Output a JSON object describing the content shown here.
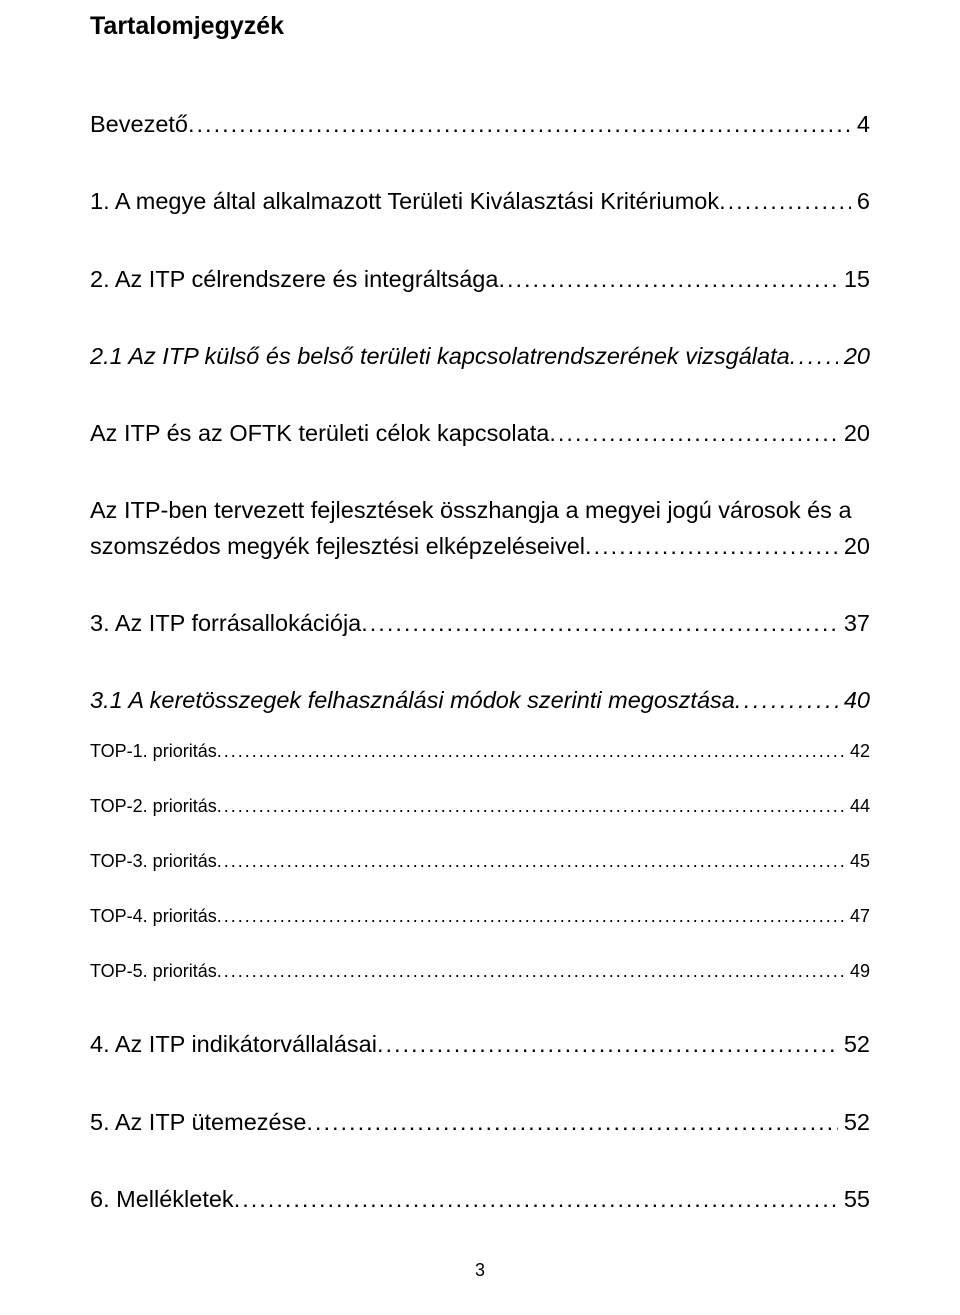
{
  "title": "Tartalomjegyzék",
  "entries": [
    {
      "label": "Bevezető",
      "page": "4"
    },
    {
      "label": "1.   A megye által alkalmazott Területi Kiválasztási Kritériumok",
      "page": "6"
    },
    {
      "label": "2.   Az ITP célrendszere és integráltsága",
      "page": "15"
    },
    {
      "label": "2.1   Az ITP külső és belső területi kapcsolatrendszerének vizsgálata",
      "page": "20"
    },
    {
      "label": "Az ITP és az OFTK területi célok kapcsolata",
      "page": "20"
    },
    {
      "label_line1": "Az ITP-ben tervezett fejlesztések összhangja a megyei jogú városok és a",
      "label_line2": "szomszédos megyék fejlesztési elképzeléseivel",
      "page": "20"
    },
    {
      "label": "3.   Az ITP forrásallokációja",
      "page": "37"
    },
    {
      "label": "3.1   A keretösszegek felhasználási módok szerinti megosztása",
      "page": "40"
    },
    {
      "label": "TOP-1. prioritás",
      "page": "42"
    },
    {
      "label": "TOP-2. prioritás",
      "page": "44"
    },
    {
      "label": "TOP-3. prioritás",
      "page": "45"
    },
    {
      "label": "TOP-4. prioritás",
      "page": "47"
    },
    {
      "label": "TOP-5. prioritás",
      "page": "49"
    },
    {
      "label": "4.   Az ITP indikátorvállalásai",
      "page": "52"
    },
    {
      "label": "5.   Az ITP ütemezése",
      "page": "52"
    },
    {
      "label": "6.   Mellékletek",
      "page": "55"
    }
  ],
  "page_number": "3",
  "colors": {
    "text": "#000000",
    "background": "#ffffff"
  },
  "typography": {
    "title_fontsize": 25,
    "body_fontsize": 23.5,
    "small_fontsize": 18,
    "footer_fontsize": 18,
    "font_family": "Arial"
  }
}
